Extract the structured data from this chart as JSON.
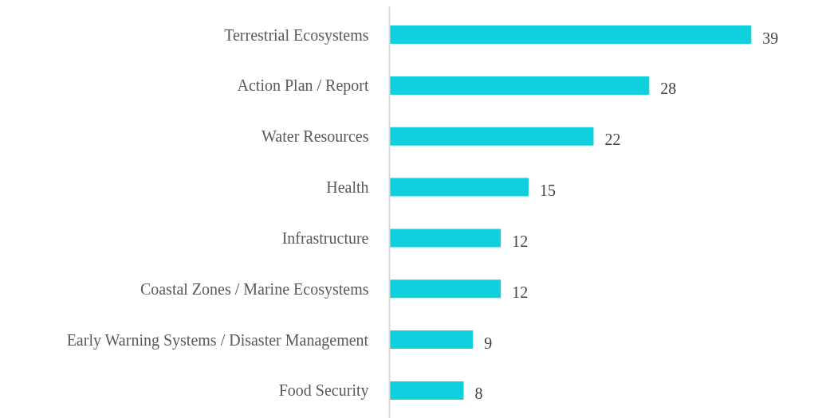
{
  "chart_data": {
    "type": "bar",
    "orientation": "horizontal",
    "categories": [
      "Terrestrial Ecosystems",
      "Action Plan / Report",
      "Water Resources",
      "Health",
      "Infrastructure",
      "Coastal Zones / Marine Ecosystems",
      "Early Warning Systems / Disaster Management",
      "Food Security"
    ],
    "values": [
      39,
      28,
      22,
      15,
      12,
      12,
      9,
      8
    ],
    "color": "#0fd0dc",
    "data_labels": true,
    "grid": false
  }
}
